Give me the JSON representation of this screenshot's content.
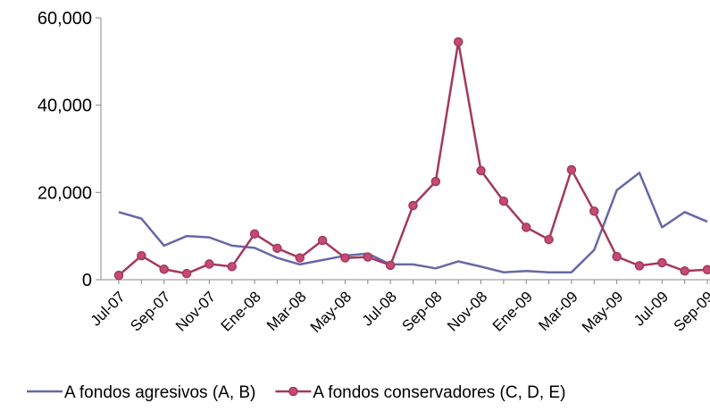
{
  "chart_data": {
    "type": "line",
    "categories": [
      "Jul-07",
      null,
      "Sep-07",
      null,
      "Nov-07",
      null,
      "Ene-08",
      null,
      "Mar-08",
      null,
      "May-08",
      null,
      "Jul-08",
      null,
      "Sep-08",
      null,
      "Nov-08",
      null,
      "Ene-09",
      null,
      "Mar-09",
      null,
      "May-09",
      null,
      "Jul-09",
      null,
      "Sep-09"
    ],
    "series": [
      {
        "name": "A fondos agresivos (A, B)",
        "color": "#6668a6",
        "marker": false,
        "values": [
          15500,
          14000,
          7800,
          10000,
          9700,
          7800,
          7300,
          5000,
          3500,
          4500,
          5500,
          6000,
          3500,
          3500,
          2600,
          4200,
          3000,
          1700,
          2000,
          1700,
          1700,
          6800,
          20500,
          24500,
          12000,
          15500,
          13300
        ]
      },
      {
        "name": "A fondos conservadores (C, D, E)",
        "color": "#a3385f",
        "marker": true,
        "values": [
          1000,
          5500,
          2400,
          1400,
          3600,
          3000,
          10500,
          7200,
          5000,
          9000,
          5000,
          5200,
          3300,
          17000,
          22500,
          54500,
          25000,
          18000,
          12000,
          9200,
          25200,
          15700,
          5300,
          3200,
          3900,
          2000,
          2300
        ]
      }
    ],
    "ylim": [
      0,
      60000
    ],
    "yticks": [
      0,
      {
        "value": 20000,
        "label": "20,000"
      },
      {
        "value": 40000,
        "label": "40,000"
      },
      {
        "value": 60000,
        "label": "60,000"
      }
    ],
    "legend": "bottom"
  }
}
